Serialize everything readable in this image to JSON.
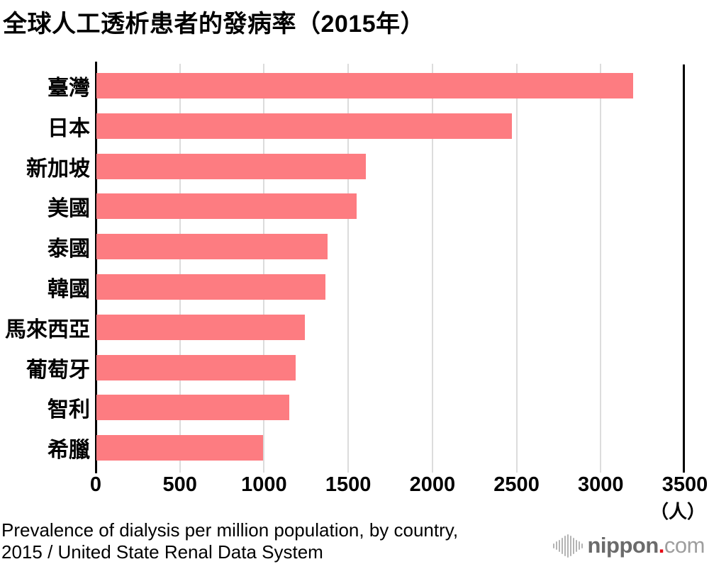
{
  "title": "全球人工透析患者的發病率（2015年）",
  "chart_data": {
    "type": "bar",
    "orientation": "horizontal",
    "title": "全球人工透析患者的發病率（2015年）",
    "categories": [
      "臺灣",
      "日本",
      "新加坡",
      "美國",
      "泰國",
      "韓國",
      "馬來西亞",
      "葡萄牙",
      "智利",
      "希臘"
    ],
    "values": [
      3190,
      2470,
      1600,
      1545,
      1375,
      1360,
      1240,
      1185,
      1145,
      990
    ],
    "xlim": [
      0,
      3500
    ],
    "xticks": [
      0,
      500,
      1000,
      1500,
      2000,
      2500,
      3000,
      3500
    ],
    "unit_label": "（人）",
    "bar_color": "#fd7c81",
    "gridline_color": "#dcdcdc",
    "axis_color": "#000000",
    "grid": true,
    "legend": false
  },
  "footer": {
    "source_line1": "Prevalence of dialysis per million population, by country,",
    "source_line2": "2015 / United State Renal Data System"
  },
  "logo": {
    "name_bold": "nippon",
    "dot": ".",
    "name_light": "com",
    "dot_color": "#e60012",
    "mark_bar_heights": [
      7,
      12,
      17,
      23,
      29,
      33,
      29,
      23,
      17,
      12,
      7
    ]
  }
}
